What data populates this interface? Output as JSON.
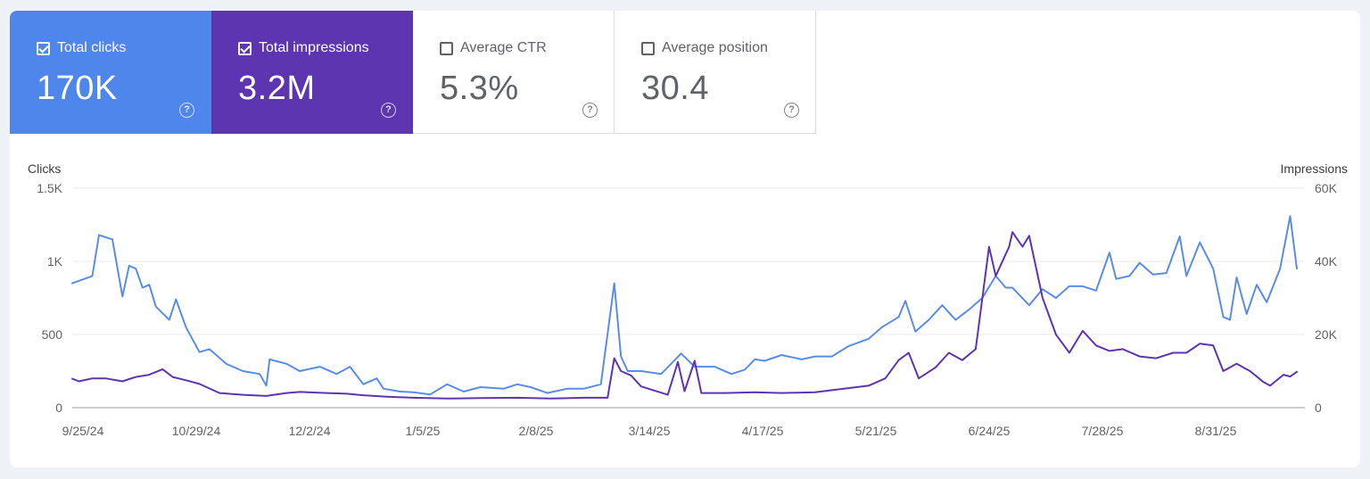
{
  "metrics": [
    {
      "label": "Total clicks",
      "value": "170K",
      "checked": true,
      "color": "#4e86ec"
    },
    {
      "label": "Total impressions",
      "value": "3.2M",
      "checked": true,
      "color": "#5e35b1"
    },
    {
      "label": "Average CTR",
      "value": "5.3%",
      "checked": false
    },
    {
      "label": "Average position",
      "value": "30.4",
      "checked": false
    }
  ],
  "help_icon": "help-circle-icon",
  "chart_data": {
    "type": "line",
    "left_axis": {
      "title": "Clicks",
      "ticks": [
        "0",
        "500",
        "1K",
        "1.5K"
      ],
      "range": [
        0,
        1500
      ]
    },
    "right_axis": {
      "title": "Impressions",
      "ticks": [
        "0",
        "20K",
        "40K",
        "60K"
      ],
      "range": [
        0,
        60000
      ]
    },
    "x_labels": [
      "9/25/24",
      "10/29/24",
      "12/2/24",
      "1/5/25",
      "2/8/25",
      "3/14/25",
      "4/17/25",
      "5/21/25",
      "6/24/25",
      "7/28/25",
      "8/31/25"
    ],
    "x_range": [
      "2024-09-25",
      "2025-09-26"
    ],
    "series": [
      {
        "name": "Clicks",
        "axis": "left",
        "color": "#5b8de6",
        "points": [
          [
            "2024-09-25",
            850
          ],
          [
            "2024-10-01",
            900
          ],
          [
            "2024-10-03",
            1180
          ],
          [
            "2024-10-07",
            1150
          ],
          [
            "2024-10-10",
            760
          ],
          [
            "2024-10-12",
            970
          ],
          [
            "2024-10-14",
            950
          ],
          [
            "2024-10-16",
            820
          ],
          [
            "2024-10-18",
            840
          ],
          [
            "2024-10-20",
            690
          ],
          [
            "2024-10-24",
            600
          ],
          [
            "2024-10-26",
            740
          ],
          [
            "2024-10-29",
            550
          ],
          [
            "2024-11-02",
            380
          ],
          [
            "2024-11-05",
            400
          ],
          [
            "2024-11-10",
            300
          ],
          [
            "2024-11-15",
            250
          ],
          [
            "2024-11-20",
            230
          ],
          [
            "2024-11-22",
            150
          ],
          [
            "2024-11-23",
            330
          ],
          [
            "2024-11-28",
            300
          ],
          [
            "2024-12-02",
            250
          ],
          [
            "2024-12-08",
            280
          ],
          [
            "2024-12-13",
            230
          ],
          [
            "2024-12-17",
            280
          ],
          [
            "2024-12-21",
            160
          ],
          [
            "2024-12-25",
            200
          ],
          [
            "2024-12-27",
            130
          ],
          [
            "2025-01-01",
            110
          ],
          [
            "2025-01-05",
            105
          ],
          [
            "2025-01-10",
            90
          ],
          [
            "2025-01-15",
            160
          ],
          [
            "2025-01-20",
            110
          ],
          [
            "2025-01-25",
            140
          ],
          [
            "2025-02-01",
            130
          ],
          [
            "2025-02-05",
            160
          ],
          [
            "2025-02-09",
            140
          ],
          [
            "2025-02-14",
            100
          ],
          [
            "2025-02-20",
            130
          ],
          [
            "2025-02-25",
            130
          ],
          [
            "2025-03-02",
            160
          ],
          [
            "2025-03-06",
            850
          ],
          [
            "2025-03-08",
            350
          ],
          [
            "2025-03-10",
            250
          ],
          [
            "2025-03-14",
            250
          ],
          [
            "2025-03-20",
            230
          ],
          [
            "2025-03-26",
            370
          ],
          [
            "2025-03-30",
            280
          ],
          [
            "2025-04-05",
            280
          ],
          [
            "2025-04-10",
            230
          ],
          [
            "2025-04-14",
            260
          ],
          [
            "2025-04-17",
            330
          ],
          [
            "2025-04-20",
            320
          ],
          [
            "2025-04-25",
            360
          ],
          [
            "2025-05-01",
            330
          ],
          [
            "2025-05-05",
            350
          ],
          [
            "2025-05-10",
            350
          ],
          [
            "2025-05-15",
            420
          ],
          [
            "2025-05-21",
            470
          ],
          [
            "2025-05-25",
            550
          ],
          [
            "2025-05-30",
            620
          ],
          [
            "2025-06-01",
            730
          ],
          [
            "2025-06-04",
            520
          ],
          [
            "2025-06-08",
            600
          ],
          [
            "2025-06-12",
            700
          ],
          [
            "2025-06-16",
            600
          ],
          [
            "2025-06-20",
            670
          ],
          [
            "2025-06-24",
            750
          ],
          [
            "2025-06-28",
            900
          ],
          [
            "2025-07-01",
            820
          ],
          [
            "2025-07-03",
            820
          ],
          [
            "2025-07-08",
            700
          ],
          [
            "2025-07-12",
            810
          ],
          [
            "2025-07-16",
            750
          ],
          [
            "2025-07-20",
            830
          ],
          [
            "2025-07-24",
            830
          ],
          [
            "2025-07-28",
            800
          ],
          [
            "2025-08-01",
            1060
          ],
          [
            "2025-08-03",
            880
          ],
          [
            "2025-08-07",
            900
          ],
          [
            "2025-08-10",
            990
          ],
          [
            "2025-08-14",
            910
          ],
          [
            "2025-08-18",
            920
          ],
          [
            "2025-08-22",
            1170
          ],
          [
            "2025-08-24",
            900
          ],
          [
            "2025-08-28",
            1130
          ],
          [
            "2025-09-01",
            950
          ],
          [
            "2025-09-04",
            620
          ],
          [
            "2025-09-06",
            600
          ],
          [
            "2025-09-08",
            890
          ],
          [
            "2025-09-11",
            640
          ],
          [
            "2025-09-14",
            840
          ],
          [
            "2025-09-17",
            720
          ],
          [
            "2025-09-21",
            950
          ],
          [
            "2025-09-24",
            1310
          ],
          [
            "2025-09-26",
            950
          ]
        ]
      },
      {
        "name": "Impressions",
        "axis": "right",
        "color": "#5e35b1",
        "points": [
          [
            "2024-09-25",
            7900
          ],
          [
            "2024-09-27",
            7200
          ],
          [
            "2024-10-01",
            8000
          ],
          [
            "2024-10-05",
            8000
          ],
          [
            "2024-10-10",
            7200
          ],
          [
            "2024-10-14",
            8400
          ],
          [
            "2024-10-18",
            9000
          ],
          [
            "2024-10-22",
            10500
          ],
          [
            "2024-10-25",
            8400
          ],
          [
            "2024-10-29",
            7500
          ],
          [
            "2024-11-02",
            6500
          ],
          [
            "2024-11-08",
            4000
          ],
          [
            "2024-11-15",
            3500
          ],
          [
            "2024-11-22",
            3200
          ],
          [
            "2024-11-28",
            4000
          ],
          [
            "2024-12-02",
            4300
          ],
          [
            "2024-12-10",
            4000
          ],
          [
            "2024-12-16",
            3800
          ],
          [
            "2024-12-21",
            3400
          ],
          [
            "2024-12-28",
            3000
          ],
          [
            "2025-01-05",
            2700
          ],
          [
            "2025-01-15",
            2500
          ],
          [
            "2025-01-25",
            2600
          ],
          [
            "2025-02-05",
            2700
          ],
          [
            "2025-02-15",
            2500
          ],
          [
            "2025-02-25",
            2700
          ],
          [
            "2025-03-04",
            2700
          ],
          [
            "2025-03-06",
            13500
          ],
          [
            "2025-03-08",
            10000
          ],
          [
            "2025-03-11",
            8800
          ],
          [
            "2025-03-14",
            5800
          ],
          [
            "2025-03-22",
            3500
          ],
          [
            "2025-03-25",
            12500
          ],
          [
            "2025-03-27",
            4500
          ],
          [
            "2025-03-30",
            12800
          ],
          [
            "2025-04-01",
            4000
          ],
          [
            "2025-04-08",
            4000
          ],
          [
            "2025-04-17",
            4200
          ],
          [
            "2025-04-25",
            4000
          ],
          [
            "2025-05-05",
            4200
          ],
          [
            "2025-05-12",
            5000
          ],
          [
            "2025-05-21",
            6000
          ],
          [
            "2025-05-26",
            8000
          ],
          [
            "2025-05-30",
            13000
          ],
          [
            "2025-06-02",
            15000
          ],
          [
            "2025-06-05",
            8000
          ],
          [
            "2025-06-10",
            11000
          ],
          [
            "2025-06-14",
            15000
          ],
          [
            "2025-06-18",
            13000
          ],
          [
            "2025-06-22",
            16000
          ],
          [
            "2025-06-26",
            44000
          ],
          [
            "2025-06-28",
            36000
          ],
          [
            "2025-07-02",
            44000
          ],
          [
            "2025-07-03",
            48000
          ],
          [
            "2025-07-06",
            44000
          ],
          [
            "2025-07-08",
            47000
          ],
          [
            "2025-07-12",
            30000
          ],
          [
            "2025-07-16",
            20000
          ],
          [
            "2025-07-20",
            15000
          ],
          [
            "2025-07-24",
            21000
          ],
          [
            "2025-07-28",
            17000
          ],
          [
            "2025-08-01",
            15500
          ],
          [
            "2025-08-05",
            16000
          ],
          [
            "2025-08-10",
            14000
          ],
          [
            "2025-08-15",
            13500
          ],
          [
            "2025-08-20",
            15000
          ],
          [
            "2025-08-24",
            15000
          ],
          [
            "2025-08-28",
            17500
          ],
          [
            "2025-09-01",
            17000
          ],
          [
            "2025-09-04",
            10000
          ],
          [
            "2025-09-08",
            12000
          ],
          [
            "2025-09-12",
            10000
          ],
          [
            "2025-09-16",
            7000
          ],
          [
            "2025-09-18",
            6000
          ],
          [
            "2025-09-22",
            9000
          ],
          [
            "2025-09-24",
            8500
          ],
          [
            "2025-09-26",
            9800
          ]
        ]
      }
    ]
  }
}
